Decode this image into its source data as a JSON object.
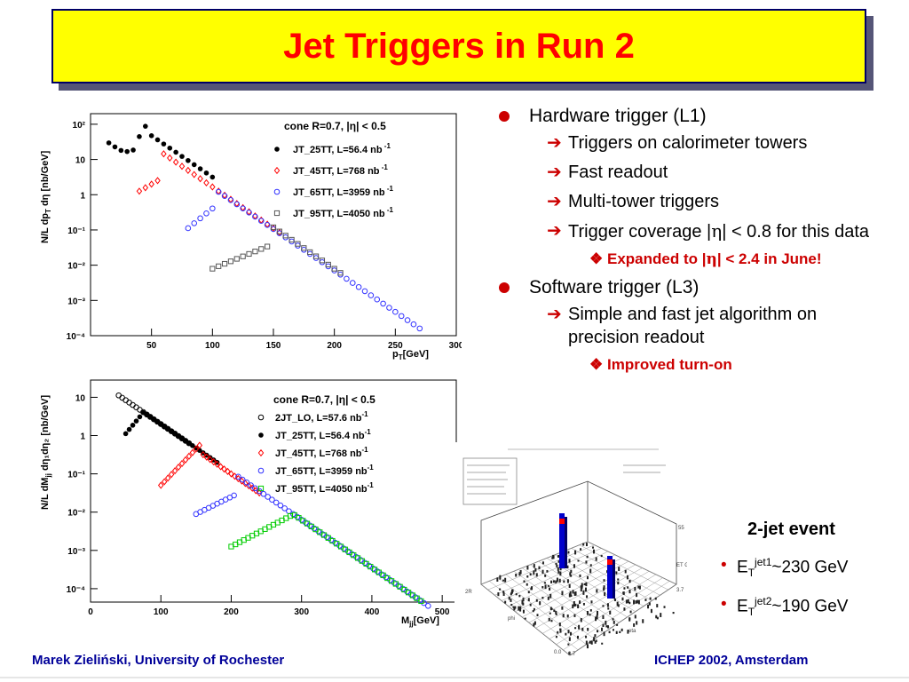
{
  "title": "Jet Triggers in Run 2",
  "plot1": {
    "legend_title": "cone R=0.7, |",
    "legend_title_eta": "η",
    "legend_title_end": "| < 0.5",
    "ylabel": "N/L dp",
    "xlabel": "p",
    "xlabel_unit": "[GeV]",
    "xticks": [
      "50",
      "100",
      "150",
      "200",
      "250",
      "300"
    ],
    "yticks": [
      "10²",
      "10",
      "1",
      "10⁻¹",
      "10⁻²",
      "10⁻³",
      "10⁻⁴"
    ],
    "legend": [
      {
        "label": "JT_25TT, L=56.4 nb",
        "sup": "-1",
        "color": "#000000",
        "marker": "filled-circle"
      },
      {
        "label": "JT_45TT, L=768 nb",
        "sup": "-1",
        "color": "#ff0000",
        "marker": "diamond"
      },
      {
        "label": "JT_65TT, L=3959 nb",
        "sup": "-1",
        "color": "#3333ff",
        "marker": "open-circle"
      },
      {
        "label": "JT_95TT, L=4050 nb",
        "sup": "-1",
        "color": "#555555",
        "marker": "open-square"
      }
    ]
  },
  "plot2": {
    "legend_title": "cone R=0.7, |",
    "legend_title_eta": "η",
    "legend_title_end": "| < 0.5",
    "ylabel": "N/L dM",
    "xlabel": "M",
    "xlabel_sub": "jj",
    "xlabel_unit": "[GeV]",
    "xticks": [
      "0",
      "100",
      "200",
      "300",
      "400",
      "500"
    ],
    "yticks": [
      "10",
      "1",
      "10⁻¹",
      "10⁻²",
      "10⁻³",
      "10⁻⁴"
    ],
    "legend": [
      {
        "label": "2JT_LO, L=57.6 nb",
        "sup": "-1",
        "color": "#000000",
        "marker": "open-circle"
      },
      {
        "label": "JT_25TT, L=56.4 nb",
        "sup": "-1",
        "color": "#000000",
        "marker": "filled-circle"
      },
      {
        "label": "JT_45TT, L=768 nb",
        "sup": "-1",
        "color": "#ff0000",
        "marker": "diamond"
      },
      {
        "label": "JT_65TT, L=3959 nb",
        "sup": "-1",
        "color": "#3333ff",
        "marker": "open-circle"
      },
      {
        "label": "JT_95TT, L=4050 nb",
        "sup": "-1",
        "color": "#00cc00",
        "marker": "open-square"
      }
    ]
  },
  "bullets": {
    "b1": "Hardware trigger (L1)",
    "b1_items": [
      "Triggers on calorimeter towers",
      "Fast readout",
      "Multi-tower triggers"
    ],
    "b1_cov_pre": "Trigger coverage |",
    "b1_cov_eta": "η",
    "b1_cov_post": "| < 0.8 for this data",
    "b1_sub_pre": "Expanded to |",
    "b1_sub_eta": "η",
    "b1_sub_post": "| < 2.4 in June!",
    "b2": "Software trigger (L3)",
    "b2_item": "Simple and fast jet algorithm on precision readout",
    "b2_sub": "Improved turn-on"
  },
  "event": {
    "head": "2-jet event",
    "e1_pre": "E",
    "e1_sub": "T",
    "e1_sup": "jet1",
    "e1_val": "~230 GeV",
    "e2_pre": "E",
    "e2_sub": "T",
    "e2_sup": "jet2",
    "e2_val": "~190 GeV"
  },
  "footer": {
    "left": "Marek Zieliński, University of Rochester",
    "right": "ICHEP 2002, Amsterdam"
  }
}
